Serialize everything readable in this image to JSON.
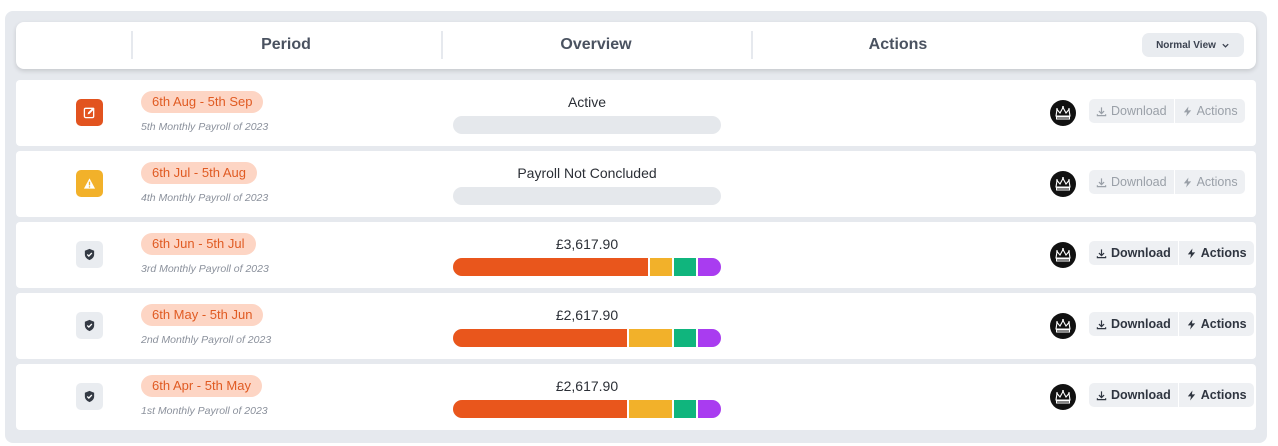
{
  "header": {
    "columns": [
      "Period",
      "Overview",
      "Actions"
    ],
    "view_label": "Normal View",
    "view_icon": "chevron-down-icon"
  },
  "colors": {
    "orange": "#e9561c",
    "yellow": "#f2b12a",
    "green": "#10b57d",
    "purple": "#a93cf0",
    "empty": "#e5e8ec",
    "pill_bg": "#fdd5c4",
    "pill_text": "#e05b23"
  },
  "rows": [
    {
      "status": "edit",
      "status_icon": "edit-icon",
      "period": "6th Aug - 5th Sep",
      "subtitle": "5th Monthly Payroll of 2023",
      "overview": "Active",
      "breakdown": [],
      "hmrc_icon": "crown-icon",
      "download": "Download",
      "actions": "Actions",
      "enabled": false
    },
    {
      "status": "warning",
      "status_icon": "warning-icon",
      "period": "6th Jul - 5th Aug",
      "subtitle": "4th Monthly Payroll of 2023",
      "overview": "Payroll Not Concluded",
      "breakdown": [],
      "hmrc_icon": "crown-icon",
      "download": "Download",
      "actions": "Actions",
      "enabled": false
    },
    {
      "status": "done",
      "status_icon": "shield-check-icon",
      "period": "6th Jun - 5th Jul",
      "subtitle": "3rd Monthly Payroll of 2023",
      "overview": "£3,617.90",
      "breakdown": [
        0.735,
        0.09,
        0.09,
        0.085
      ],
      "hmrc_icon": "crown-icon",
      "download": "Download",
      "actions": "Actions",
      "enabled": true
    },
    {
      "status": "done",
      "status_icon": "shield-check-icon",
      "period": "6th May - 5th Jun",
      "subtitle": "2nd Monthly Payroll of 2023",
      "overview": "£2,617.90",
      "breakdown": [
        0.655,
        0.17,
        0.09,
        0.085
      ],
      "hmrc_icon": "crown-icon",
      "download": "Download",
      "actions": "Actions",
      "enabled": true
    },
    {
      "status": "done",
      "status_icon": "shield-check-icon",
      "period": "6th Apr - 5th May",
      "subtitle": "1st Monthly Payroll of 2023",
      "overview": "£2,617.90",
      "breakdown": [
        0.655,
        0.17,
        0.09,
        0.085
      ],
      "hmrc_icon": "crown-icon",
      "download": "Download",
      "actions": "Actions",
      "enabled": true
    }
  ]
}
